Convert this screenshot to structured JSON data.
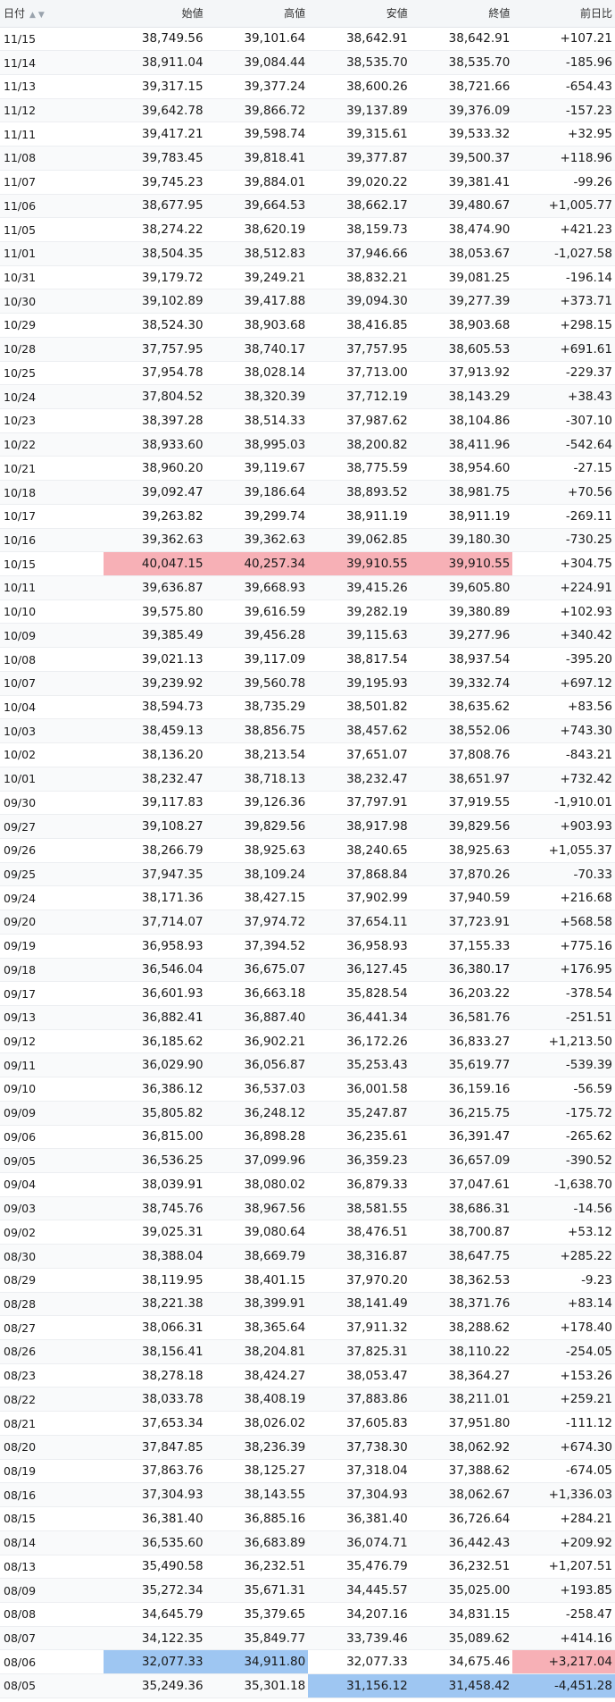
{
  "header": {
    "date": "日付",
    "open": "始値",
    "high": "高値",
    "low": "安値",
    "close": "終値",
    "change": "前日比"
  },
  "rows": [
    [
      "11/15",
      "38,749.56",
      "39,101.64",
      "38,642.91",
      "38,642.91",
      "+107.21"
    ],
    [
      "11/14",
      "38,911.04",
      "39,084.44",
      "38,535.70",
      "38,535.70",
      "-185.96"
    ],
    [
      "11/13",
      "39,317.15",
      "39,377.24",
      "38,600.26",
      "38,721.66",
      "-654.43"
    ],
    [
      "11/12",
      "39,642.78",
      "39,866.72",
      "39,137.89",
      "39,376.09",
      "-157.23"
    ],
    [
      "11/11",
      "39,417.21",
      "39,598.74",
      "39,315.61",
      "39,533.32",
      "+32.95"
    ],
    [
      "11/08",
      "39,783.45",
      "39,818.41",
      "39,377.87",
      "39,500.37",
      "+118.96"
    ],
    [
      "11/07",
      "39,745.23",
      "39,884.01",
      "39,020.22",
      "39,381.41",
      "-99.26"
    ],
    [
      "11/06",
      "38,677.95",
      "39,664.53",
      "38,662.17",
      "39,480.67",
      "+1,005.77"
    ],
    [
      "11/05",
      "38,274.22",
      "38,620.19",
      "38,159.73",
      "38,474.90",
      "+421.23"
    ],
    [
      "11/01",
      "38,504.35",
      "38,512.83",
      "37,946.66",
      "38,053.67",
      "-1,027.58"
    ],
    [
      "10/31",
      "39,179.72",
      "39,249.21",
      "38,832.21",
      "39,081.25",
      "-196.14"
    ],
    [
      "10/30",
      "39,102.89",
      "39,417.88",
      "39,094.30",
      "39,277.39",
      "+373.71"
    ],
    [
      "10/29",
      "38,524.30",
      "38,903.68",
      "38,416.85",
      "38,903.68",
      "+298.15"
    ],
    [
      "10/28",
      "37,757.95",
      "38,740.17",
      "37,757.95",
      "38,605.53",
      "+691.61"
    ],
    [
      "10/25",
      "37,954.78",
      "38,028.14",
      "37,713.00",
      "37,913.92",
      "-229.37"
    ],
    [
      "10/24",
      "37,804.52",
      "38,320.39",
      "37,712.19",
      "38,143.29",
      "+38.43"
    ],
    [
      "10/23",
      "38,397.28",
      "38,514.33",
      "37,987.62",
      "38,104.86",
      "-307.10"
    ],
    [
      "10/22",
      "38,933.60",
      "38,995.03",
      "38,200.82",
      "38,411.96",
      "-542.64"
    ],
    [
      "10/21",
      "38,960.20",
      "39,119.67",
      "38,775.59",
      "38,954.60",
      "-27.15"
    ],
    [
      "10/18",
      "39,092.47",
      "39,186.64",
      "38,893.52",
      "38,981.75",
      "+70.56"
    ],
    [
      "10/17",
      "39,263.82",
      "39,299.74",
      "38,911.19",
      "38,911.19",
      "-269.11"
    ],
    [
      "10/16",
      "39,362.63",
      "39,362.63",
      "39,062.85",
      "39,180.30",
      "-730.25"
    ],
    [
      "10/15",
      "40,047.15",
      "40,257.34",
      "39,910.55",
      "39,910.55",
      "+304.75"
    ],
    [
      "10/11",
      "39,636.87",
      "39,668.93",
      "39,415.26",
      "39,605.80",
      "+224.91"
    ],
    [
      "10/10",
      "39,575.80",
      "39,616.59",
      "39,282.19",
      "39,380.89",
      "+102.93"
    ],
    [
      "10/09",
      "39,385.49",
      "39,456.28",
      "39,115.63",
      "39,277.96",
      "+340.42"
    ],
    [
      "10/08",
      "39,021.13",
      "39,117.09",
      "38,817.54",
      "38,937.54",
      "-395.20"
    ],
    [
      "10/07",
      "39,239.92",
      "39,560.78",
      "39,195.93",
      "39,332.74",
      "+697.12"
    ],
    [
      "10/04",
      "38,594.73",
      "38,735.29",
      "38,501.82",
      "38,635.62",
      "+83.56"
    ],
    [
      "10/03",
      "38,459.13",
      "38,856.75",
      "38,457.62",
      "38,552.06",
      "+743.30"
    ],
    [
      "10/02",
      "38,136.20",
      "38,213.54",
      "37,651.07",
      "37,808.76",
      "-843.21"
    ],
    [
      "10/01",
      "38,232.47",
      "38,718.13",
      "38,232.47",
      "38,651.97",
      "+732.42"
    ],
    [
      "09/30",
      "39,117.83",
      "39,126.36",
      "37,797.91",
      "37,919.55",
      "-1,910.01"
    ],
    [
      "09/27",
      "39,108.27",
      "39,829.56",
      "38,917.98",
      "39,829.56",
      "+903.93"
    ],
    [
      "09/26",
      "38,266.79",
      "38,925.63",
      "38,240.65",
      "38,925.63",
      "+1,055.37"
    ],
    [
      "09/25",
      "37,947.35",
      "38,109.24",
      "37,868.84",
      "37,870.26",
      "-70.33"
    ],
    [
      "09/24",
      "38,171.36",
      "38,427.15",
      "37,902.99",
      "37,940.59",
      "+216.68"
    ],
    [
      "09/20",
      "37,714.07",
      "37,974.72",
      "37,654.11",
      "37,723.91",
      "+568.58"
    ],
    [
      "09/19",
      "36,958.93",
      "37,394.52",
      "36,958.93",
      "37,155.33",
      "+775.16"
    ],
    [
      "09/18",
      "36,546.04",
      "36,675.07",
      "36,127.45",
      "36,380.17",
      "+176.95"
    ],
    [
      "09/17",
      "36,601.93",
      "36,663.18",
      "35,828.54",
      "36,203.22",
      "-378.54"
    ],
    [
      "09/13",
      "36,882.41",
      "36,887.40",
      "36,441.34",
      "36,581.76",
      "-251.51"
    ],
    [
      "09/12",
      "36,185.62",
      "36,902.21",
      "36,172.26",
      "36,833.27",
      "+1,213.50"
    ],
    [
      "09/11",
      "36,029.90",
      "36,056.87",
      "35,253.43",
      "35,619.77",
      "-539.39"
    ],
    [
      "09/10",
      "36,386.12",
      "36,537.03",
      "36,001.58",
      "36,159.16",
      "-56.59"
    ],
    [
      "09/09",
      "35,805.82",
      "36,248.12",
      "35,247.87",
      "36,215.75",
      "-175.72"
    ],
    [
      "09/06",
      "36,815.00",
      "36,898.28",
      "36,235.61",
      "36,391.47",
      "-265.62"
    ],
    [
      "09/05",
      "36,536.25",
      "37,099.96",
      "36,359.23",
      "36,657.09",
      "-390.52"
    ],
    [
      "09/04",
      "38,039.91",
      "38,080.02",
      "36,879.33",
      "37,047.61",
      "-1,638.70"
    ],
    [
      "09/03",
      "38,745.76",
      "38,967.56",
      "38,581.55",
      "38,686.31",
      "-14.56"
    ],
    [
      "09/02",
      "39,025.31",
      "39,080.64",
      "38,476.51",
      "38,700.87",
      "+53.12"
    ],
    [
      "08/30",
      "38,388.04",
      "38,669.79",
      "38,316.87",
      "38,647.75",
      "+285.22"
    ],
    [
      "08/29",
      "38,119.95",
      "38,401.15",
      "37,970.20",
      "38,362.53",
      "-9.23"
    ],
    [
      "08/28",
      "38,221.38",
      "38,399.91",
      "38,141.49",
      "38,371.76",
      "+83.14"
    ],
    [
      "08/27",
      "38,066.31",
      "38,365.64",
      "37,911.32",
      "38,288.62",
      "+178.40"
    ],
    [
      "08/26",
      "38,156.41",
      "38,204.81",
      "37,825.31",
      "38,110.22",
      "-254.05"
    ],
    [
      "08/23",
      "38,278.18",
      "38,424.27",
      "38,053.47",
      "38,364.27",
      "+153.26"
    ],
    [
      "08/22",
      "38,033.78",
      "38,408.19",
      "37,883.86",
      "38,211.01",
      "+259.21"
    ],
    [
      "08/21",
      "37,653.34",
      "38,026.02",
      "37,605.83",
      "37,951.80",
      "-111.12"
    ],
    [
      "08/20",
      "37,847.85",
      "38,236.39",
      "37,738.30",
      "38,062.92",
      "+674.30"
    ],
    [
      "08/19",
      "37,863.76",
      "38,125.27",
      "37,318.04",
      "37,388.62",
      "-674.05"
    ],
    [
      "08/16",
      "37,304.93",
      "38,143.55",
      "37,304.93",
      "38,062.67",
      "+1,336.03"
    ],
    [
      "08/15",
      "36,381.40",
      "36,885.16",
      "36,381.40",
      "36,726.64",
      "+284.21"
    ],
    [
      "08/14",
      "36,535.60",
      "36,683.89",
      "36,074.71",
      "36,442.43",
      "+209.92"
    ],
    [
      "08/13",
      "35,490.58",
      "36,232.51",
      "35,476.79",
      "36,232.51",
      "+1,207.51"
    ],
    [
      "08/09",
      "35,272.34",
      "35,671.31",
      "34,445.57",
      "35,025.00",
      "+193.85"
    ],
    [
      "08/08",
      "34,645.79",
      "35,379.65",
      "34,207.16",
      "34,831.15",
      "-258.47"
    ],
    [
      "08/07",
      "34,122.35",
      "35,849.77",
      "33,739.46",
      "35,089.62",
      "+414.16"
    ],
    [
      "08/06",
      "32,077.33",
      "34,911.80",
      "32,077.33",
      "34,675.46",
      "+3,217.04"
    ],
    [
      "08/05",
      "35,249.36",
      "35,301.18",
      "31,156.12",
      "31,458.42",
      "-4,451.28"
    ]
  ],
  "highlights": [
    {
      "date": "10/15",
      "cells": [
        "open",
        "high",
        "low",
        "close"
      ],
      "color": "#f7b0b6"
    },
    {
      "date": "08/06",
      "cells": [
        "open",
        "high"
      ],
      "color": "#9ec6f2"
    },
    {
      "date": "08/06",
      "cells": [
        "change"
      ],
      "color": "#f7b0b6"
    },
    {
      "date": "08/05",
      "cells": [
        "low",
        "close",
        "change"
      ],
      "color": "#9ec6f2"
    }
  ],
  "colors": {
    "positive": "#e60000",
    "negative": "#0066cc",
    "highlight_red": "#f7b0b6",
    "highlight_blue": "#9ec6f2"
  },
  "icons": {
    "sort": "sort-up-down-icon"
  }
}
